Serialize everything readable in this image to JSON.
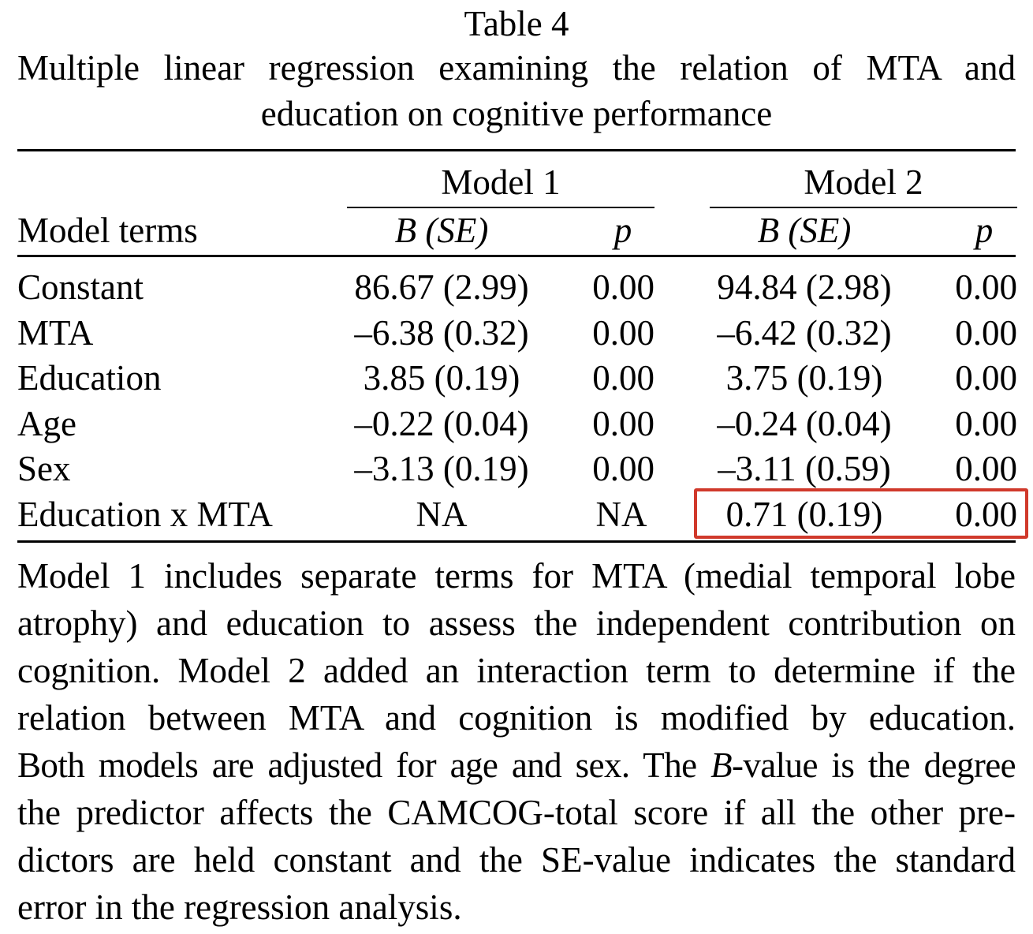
{
  "table_label": "Table 4",
  "caption": {
    "line1": "Multiple linear regression examining the relation of MTA and",
    "line2": "education on cognitive performance"
  },
  "header": {
    "model1": "Model 1",
    "model2": "Model 2",
    "terms": "Model terms",
    "b_se": "B (SE)",
    "p": "p"
  },
  "rows": [
    {
      "term": "Constant",
      "b1": "86.67 (2.99)",
      "p1": "0.00",
      "b2": "94.84 (2.98)",
      "p2": "0.00"
    },
    {
      "term": "MTA",
      "b1": "–6.38 (0.32)",
      "p1": "0.00",
      "b2": "–6.42 (0.32)",
      "p2": "0.00"
    },
    {
      "term": "Education",
      "b1": "3.85 (0.19)",
      "p1": "0.00",
      "b2": "3.75 (0.19)",
      "p2": "0.00"
    },
    {
      "term": "Age",
      "b1": "–0.22 (0.04)",
      "p1": "0.00",
      "b2": "–0.24 (0.04)",
      "p2": "0.00"
    },
    {
      "term": "Sex",
      "b1": "–3.13 (0.19)",
      "p1": "0.00",
      "b2": "–3.11 (0.59)",
      "p2": "0.00"
    },
    {
      "term": "Education x MTA",
      "b1": "NA",
      "p1": "NA",
      "b2": "0.71 (0.19)",
      "p2": "0.00"
    }
  ],
  "highlight_color": "#d0392b",
  "note": {
    "l1": "Model 1 includes separate terms for MTA (medial temporal lobe",
    "l2": "atrophy) and education to assess the independent contribution on",
    "l3": "cognition. Model 2 added an interaction term to determine if the",
    "l4": "relation between MTA and cognition is modified by education.",
    "l5a": "Both models are adjusted for age and sex. The ",
    "l5b": "B",
    "l5c": "-value is the degree",
    "l6": "the predictor affects the CAMCOG-total score if all the other pre-",
    "l7": "dictors are held constant and the SE-value indicates the standard",
    "l8": "error in the regression analysis."
  }
}
